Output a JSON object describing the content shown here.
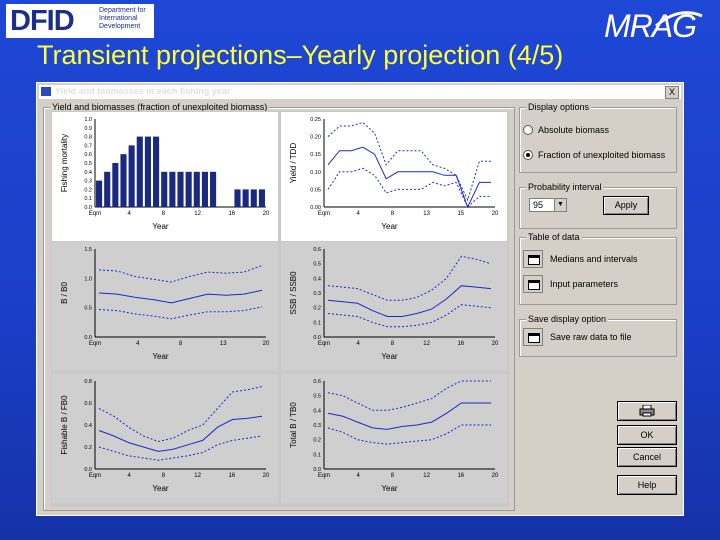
{
  "slide": {
    "title": "Transient projections–Yearly projection (4/5)",
    "dfid_logo_text": "DFID",
    "dfid_logo_subtext": "Department for International Development",
    "mrag_logo_text": "MRAG"
  },
  "window": {
    "title": "Yield and biomasses in each fishing year",
    "close_label": "X",
    "plots_group_label": "Yield and biomasses (fraction of unexploited biomass)"
  },
  "display_options": {
    "group_label": "Display options",
    "options": [
      "Absolute biomass",
      "Fraction of unexploited biomass"
    ],
    "selected": "Fraction of unexploited biomass"
  },
  "probability_interval": {
    "group_label": "Probability interval",
    "value": "95",
    "apply_label": "Apply"
  },
  "table_of_data": {
    "group_label": "Table of data",
    "items": [
      "Medians and intervals",
      "Input parameters"
    ]
  },
  "save_display": {
    "group_label": "Save display option",
    "item": "Save raw data to file"
  },
  "buttons": {
    "ok": "OK",
    "cancel": "Cancel",
    "help": "Help"
  },
  "colors": {
    "slide_bg": "#1f47d6",
    "title": "#ffff33",
    "bars": "#1a2a80",
    "series": "#1a2acc"
  },
  "chart_data": [
    {
      "type": "bar",
      "ylabel": "Fishing mortality",
      "xlabel": "Year",
      "xticks": [
        "Eqm",
        "4",
        "8",
        "12",
        "16",
        "20"
      ],
      "yticks": [
        "0.0",
        "0.1",
        "0.2",
        "0.3",
        "0.4",
        "0.5",
        "0.6",
        "0.7",
        "0.8",
        "0.9",
        "1.0"
      ],
      "ylim": [
        0,
        1.0
      ],
      "values": [
        0.3,
        0.4,
        0.5,
        0.6,
        0.7,
        0.8,
        0.8,
        0.8,
        0.4,
        0.4,
        0.4,
        0.4,
        0.4,
        0.4,
        0.4,
        0,
        0,
        0.2,
        0.2,
        0.2,
        0.2
      ]
    },
    {
      "type": "line",
      "ylabel": "Yield / TDD",
      "xlabel": "Year",
      "xticks": [
        "Eqm",
        "4",
        "8",
        "13",
        "15",
        "20"
      ],
      "yticks": [
        "0.00",
        "0.05",
        "0.10",
        "0.15",
        "0.20",
        "0.25"
      ],
      "ylim": [
        0,
        0.25
      ],
      "series": [
        {
          "values": [
            0.2,
            0.23,
            0.23,
            0.24,
            0.21,
            0.12,
            0.16,
            0.16,
            0.16,
            0.12,
            0.11,
            0.09,
            0.02,
            0.13,
            0.13
          ]
        },
        {
          "values": [
            0.12,
            0.16,
            0.16,
            0.17,
            0.15,
            0.08,
            0.1,
            0.1,
            0.1,
            0.1,
            0.09,
            0.09,
            0.0,
            0.07,
            0.07
          ]
        },
        {
          "values": [
            0.05,
            0.1,
            0.1,
            0.11,
            0.09,
            0.04,
            0.05,
            0.05,
            0.05,
            0.07,
            0.06,
            0.07,
            0.0,
            0.03,
            0.03
          ]
        }
      ]
    },
    {
      "type": "line",
      "ylabel": "B / B0",
      "xlabel": "Year",
      "xticks": [
        "Eqm",
        "4",
        "8",
        "13",
        "20"
      ],
      "yticks": [
        "0.0",
        "0.5",
        "1.0",
        "1.5"
      ],
      "ylim": [
        0,
        1.6
      ],
      "series": [
        {
          "values": [
            1.22,
            1.2,
            1.1,
            1.05,
            1.0,
            1.1,
            1.18,
            1.16,
            1.18,
            1.3
          ]
        },
        {
          "values": [
            0.8,
            0.78,
            0.72,
            0.68,
            0.62,
            0.7,
            0.78,
            0.76,
            0.78,
            0.85
          ]
        },
        {
          "values": [
            0.5,
            0.48,
            0.42,
            0.38,
            0.33,
            0.4,
            0.46,
            0.46,
            0.48,
            0.55
          ]
        }
      ]
    },
    {
      "type": "line",
      "ylabel": "SSB / SSB0",
      "xlabel": "Year",
      "xticks": [
        "Eqm",
        "4",
        "8",
        "12",
        "16",
        "20"
      ],
      "yticks": [
        "0.0",
        "0.1",
        "0.2",
        "0.3",
        "0.4",
        "0.5",
        "0.6"
      ],
      "ylim": [
        0,
        0.6
      ],
      "series": [
        {
          "values": [
            0.35,
            0.34,
            0.33,
            0.29,
            0.25,
            0.25,
            0.27,
            0.32,
            0.4,
            0.55,
            0.53,
            0.5
          ]
        },
        {
          "values": [
            0.25,
            0.24,
            0.23,
            0.18,
            0.14,
            0.14,
            0.16,
            0.19,
            0.26,
            0.35,
            0.34,
            0.33
          ]
        },
        {
          "values": [
            0.16,
            0.15,
            0.14,
            0.1,
            0.07,
            0.07,
            0.08,
            0.1,
            0.15,
            0.22,
            0.21,
            0.2
          ]
        }
      ]
    },
    {
      "type": "line",
      "ylabel": "Fishable B / FB0",
      "xlabel": "Year",
      "xticks": [
        "Eqm",
        "4",
        "8",
        "12",
        "16",
        "20"
      ],
      "yticks": [
        "0.0",
        "0.2",
        "0.4",
        "0.6",
        "0.8"
      ],
      "ylim": [
        0,
        0.8
      ],
      "series": [
        {
          "values": [
            0.55,
            0.48,
            0.38,
            0.3,
            0.25,
            0.28,
            0.35,
            0.4,
            0.55,
            0.7,
            0.72,
            0.75
          ]
        },
        {
          "values": [
            0.35,
            0.3,
            0.24,
            0.2,
            0.16,
            0.18,
            0.22,
            0.26,
            0.38,
            0.45,
            0.46,
            0.48
          ]
        },
        {
          "values": [
            0.2,
            0.16,
            0.12,
            0.1,
            0.08,
            0.1,
            0.12,
            0.15,
            0.22,
            0.26,
            0.28,
            0.3
          ]
        }
      ]
    },
    {
      "type": "line",
      "ylabel": "Total B / TB0",
      "xlabel": "Year",
      "xticks": [
        "Eqm",
        "4",
        "8",
        "12",
        "16",
        "20"
      ],
      "yticks": [
        "0.0",
        "0.1",
        "0.2",
        "0.3",
        "0.4",
        "0.5",
        "0.6"
      ],
      "ylim": [
        0,
        0.6
      ],
      "series": [
        {
          "values": [
            0.52,
            0.5,
            0.45,
            0.4,
            0.4,
            0.42,
            0.45,
            0.48,
            0.55,
            0.6,
            0.6,
            0.6
          ]
        },
        {
          "values": [
            0.38,
            0.36,
            0.32,
            0.28,
            0.27,
            0.29,
            0.3,
            0.32,
            0.38,
            0.45,
            0.45,
            0.45
          ]
        },
        {
          "values": [
            0.28,
            0.25,
            0.2,
            0.18,
            0.17,
            0.18,
            0.19,
            0.2,
            0.24,
            0.3,
            0.3,
            0.3
          ]
        }
      ]
    }
  ]
}
